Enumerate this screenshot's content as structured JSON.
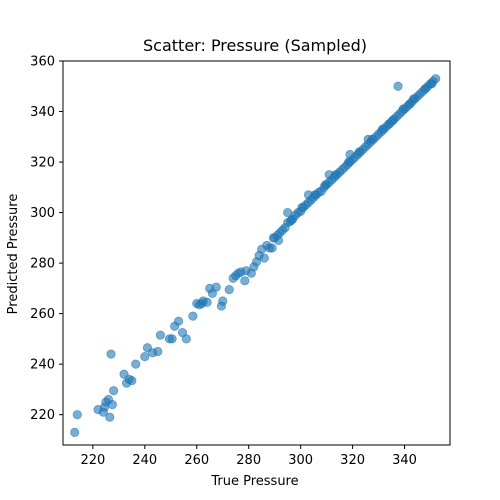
{
  "chart_data": {
    "type": "scatter",
    "title": "Scatter: Pressure (Sampled)",
    "xlabel": "True Pressure",
    "ylabel": "Predicted Pressure",
    "xlim": [
      208.5,
      357.5
    ],
    "ylim": [
      208,
      360
    ],
    "xticks": [
      220,
      240,
      260,
      280,
      300,
      320,
      340
    ],
    "yticks": [
      220,
      240,
      260,
      280,
      300,
      320,
      340,
      360
    ],
    "marker_color": "#1f77b4",
    "marker_opacity": 0.6,
    "grid": false,
    "legend": "none",
    "series": [
      {
        "x": [
          213,
          214,
          222,
          224,
          224.5,
          225,
          226,
          227,
          227.5,
          226.5,
          228,
          232,
          233,
          234,
          235,
          236.5,
          240,
          241,
          243,
          245,
          246,
          249.5,
          250.5,
          251.5,
          253,
          254.5,
          256,
          258.5,
          260,
          261,
          262,
          262.5,
          264,
          265,
          266,
          267.5,
          269.5,
          270,
          272.5,
          274,
          275,
          276,
          277,
          278.5,
          279,
          281,
          282,
          283,
          284,
          285,
          286,
          287,
          288,
          289,
          289.5,
          290,
          291,
          291.5,
          292,
          293,
          294,
          295,
          296,
          297,
          298,
          299,
          300,
          301,
          302,
          303,
          304,
          305,
          306,
          307,
          308,
          309,
          310,
          311,
          312,
          313,
          314,
          315,
          316,
          317,
          318,
          319,
          320,
          321,
          322,
          323,
          324,
          325,
          326,
          327,
          328,
          329,
          330,
          331,
          332,
          333,
          334,
          335,
          336,
          337,
          338,
          339,
          340,
          341,
          342,
          343,
          344,
          345,
          346,
          347,
          348,
          349,
          350,
          351,
          352,
          337.5,
          295,
          303,
          311,
          319,
          326,
          334,
          342,
          348,
          350.5,
          296.5,
          300.5,
          305.5,
          309.5,
          313.5,
          318.5,
          322.5,
          327.5,
          331.5,
          335.5,
          339.5,
          343.5
        ],
        "y": [
          213,
          220,
          222,
          221,
          223,
          225,
          226,
          244,
          224,
          219,
          229.5,
          236,
          232.5,
          234,
          233.5,
          240,
          243,
          246.5,
          244.5,
          245,
          251.5,
          250,
          250,
          255,
          257,
          252.5,
          250,
          259,
          264,
          263.5,
          264,
          265,
          264.5,
          270,
          268,
          270.5,
          263,
          265,
          269.5,
          274,
          275,
          276,
          276.5,
          273,
          277,
          276,
          278.5,
          280.5,
          283,
          285.5,
          282,
          287,
          286,
          286,
          290,
          290,
          291,
          289,
          292,
          293,
          294,
          296,
          296.5,
          297.5,
          299,
          300,
          300.5,
          302,
          303,
          304,
          305,
          306,
          307,
          308,
          308.5,
          310,
          311,
          312,
          313,
          314,
          315,
          316,
          317,
          318,
          319,
          320,
          321,
          322,
          323,
          324,
          325,
          326,
          327,
          328,
          329,
          330,
          331,
          332,
          333,
          334,
          335,
          336,
          337,
          338,
          339,
          340,
          341,
          342,
          343,
          344,
          345,
          346,
          347,
          348,
          349,
          350,
          351,
          352,
          353,
          350,
          300,
          307,
          315,
          323,
          329,
          335,
          343,
          349,
          351,
          297,
          302,
          307,
          311,
          315,
          320,
          324,
          329,
          333,
          336.5,
          341,
          345
        ]
      }
    ]
  }
}
